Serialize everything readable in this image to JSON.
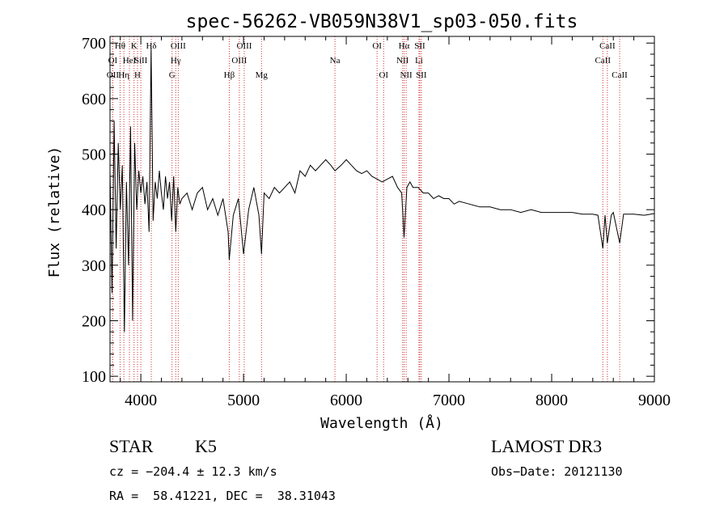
{
  "chart_data": {
    "type": "line",
    "title": "spec-56262-VB059N38V1_sp03-050.fits",
    "xlabel": "Wavelength (Å)",
    "ylabel": "Flux (relative)",
    "xlim": [
      3700,
      9000
    ],
    "ylim": [
      90,
      712
    ],
    "x_ticks": [
      4000,
      5000,
      6000,
      7000,
      8000,
      9000
    ],
    "y_ticks": [
      100,
      200,
      300,
      400,
      500,
      600,
      700
    ],
    "series": [
      {
        "name": "flux",
        "x": [
          3700,
          3720,
          3740,
          3760,
          3780,
          3800,
          3820,
          3840,
          3860,
          3880,
          3900,
          3920,
          3940,
          3960,
          3980,
          4000,
          4020,
          4040,
          4060,
          4080,
          4100,
          4120,
          4140,
          4160,
          4180,
          4200,
          4220,
          4240,
          4260,
          4280,
          4300,
          4320,
          4340,
          4360,
          4380,
          4400,
          4450,
          4500,
          4550,
          4600,
          4650,
          4700,
          4750,
          4800,
          4850,
          4861,
          4900,
          4950,
          5000,
          5050,
          5100,
          5150,
          5175,
          5200,
          5250,
          5300,
          5350,
          5400,
          5450,
          5500,
          5550,
          5600,
          5650,
          5700,
          5750,
          5800,
          5850,
          5890,
          5950,
          6000,
          6050,
          6100,
          6150,
          6200,
          6250,
          6300,
          6350,
          6400,
          6450,
          6500,
          6540,
          6563,
          6590,
          6620,
          6650,
          6700,
          6750,
          6800,
          6850,
          6900,
          6950,
          7000,
          7050,
          7100,
          7200,
          7300,
          7400,
          7500,
          7600,
          7700,
          7800,
          7900,
          8000,
          8100,
          8200,
          8300,
          8400,
          8450,
          8498,
          8520,
          8542,
          8580,
          8600,
          8662,
          8700,
          8800,
          8900,
          9000
        ],
        "y": [
          470,
          250,
          560,
          330,
          520,
          400,
          480,
          180,
          450,
          300,
          550,
          200,
          520,
          400,
          470,
          430,
          460,
          410,
          450,
          360,
          690,
          380,
          450,
          420,
          470,
          430,
          400,
          460,
          420,
          450,
          380,
          460,
          360,
          440,
          410,
          420,
          430,
          400,
          430,
          440,
          400,
          420,
          390,
          420,
          360,
          310,
          390,
          420,
          320,
          400,
          440,
          390,
          320,
          430,
          420,
          440,
          430,
          440,
          450,
          430,
          470,
          460,
          480,
          470,
          480,
          490,
          480,
          470,
          480,
          490,
          480,
          470,
          465,
          470,
          460,
          455,
          450,
          455,
          460,
          440,
          430,
          350,
          440,
          450,
          440,
          440,
          430,
          430,
          420,
          425,
          420,
          420,
          410,
          415,
          410,
          405,
          405,
          400,
          400,
          395,
          400,
          395,
          395,
          395,
          395,
          392,
          392,
          390,
          330,
          390,
          340,
          390,
          395,
          340,
          392,
          392,
          390,
          393
        ]
      }
    ],
    "lines": [
      {
        "label": "Hθ",
        "x": 3798,
        "row": 0
      },
      {
        "label": "K",
        "x": 3934,
        "row": 0
      },
      {
        "label": "Hδ",
        "x": 4102,
        "row": 0
      },
      {
        "label": "OIII",
        "x": 4364,
        "row": 0
      },
      {
        "label": "OIII",
        "x": 5007,
        "row": 0
      },
      {
        "label": "OI",
        "x": 6300,
        "row": 0
      },
      {
        "label": "Hα",
        "x": 6563,
        "row": 0
      },
      {
        "label": "SII",
        "x": 6716,
        "row": 0
      },
      {
        "label": "CaII",
        "x": 8542,
        "row": 0
      },
      {
        "label": "OI",
        "x": 3727,
        "row": 1
      },
      {
        "label": "HeI",
        "x": 3889,
        "row": 1
      },
      {
        "label": "SiII",
        "x": 4000,
        "row": 1
      },
      {
        "label": "Hγ",
        "x": 4340,
        "row": 1
      },
      {
        "label": "OIII",
        "x": 4959,
        "row": 1
      },
      {
        "label": "Na",
        "x": 5890,
        "row": 1
      },
      {
        "label": "NII",
        "x": 6548,
        "row": 1
      },
      {
        "label": "Li",
        "x": 6708,
        "row": 1
      },
      {
        "label": "CaII",
        "x": 8498,
        "row": 1
      },
      {
        "label": "OII",
        "x": 3727,
        "row": 2
      },
      {
        "label": "Hη",
        "x": 3835,
        "row": 2
      },
      {
        "label": "H",
        "x": 3968,
        "row": 2
      },
      {
        "label": "G",
        "x": 4304,
        "row": 2
      },
      {
        "label": "Hβ",
        "x": 4861,
        "row": 2
      },
      {
        "label": "Mg",
        "x": 5175,
        "row": 2
      },
      {
        "label": "OI",
        "x": 6364,
        "row": 2
      },
      {
        "label": "NII",
        "x": 6583,
        "row": 2
      },
      {
        "label": "SII",
        "x": 6731,
        "row": 2
      },
      {
        "label": "CaII",
        "x": 8662,
        "row": 2
      }
    ],
    "colors": {
      "spectrum": "#000000",
      "lines": "#cc3333",
      "axes": "#000000"
    }
  },
  "info": {
    "class": "STAR",
    "subclass": "K5",
    "survey": "LAMOST DR3",
    "cz": "cz = −204.4 ± 12.3 km/s",
    "obs_date": "Obs−Date: 20121130",
    "radec": "RA =  58.41221, DEC =  38.31043"
  }
}
